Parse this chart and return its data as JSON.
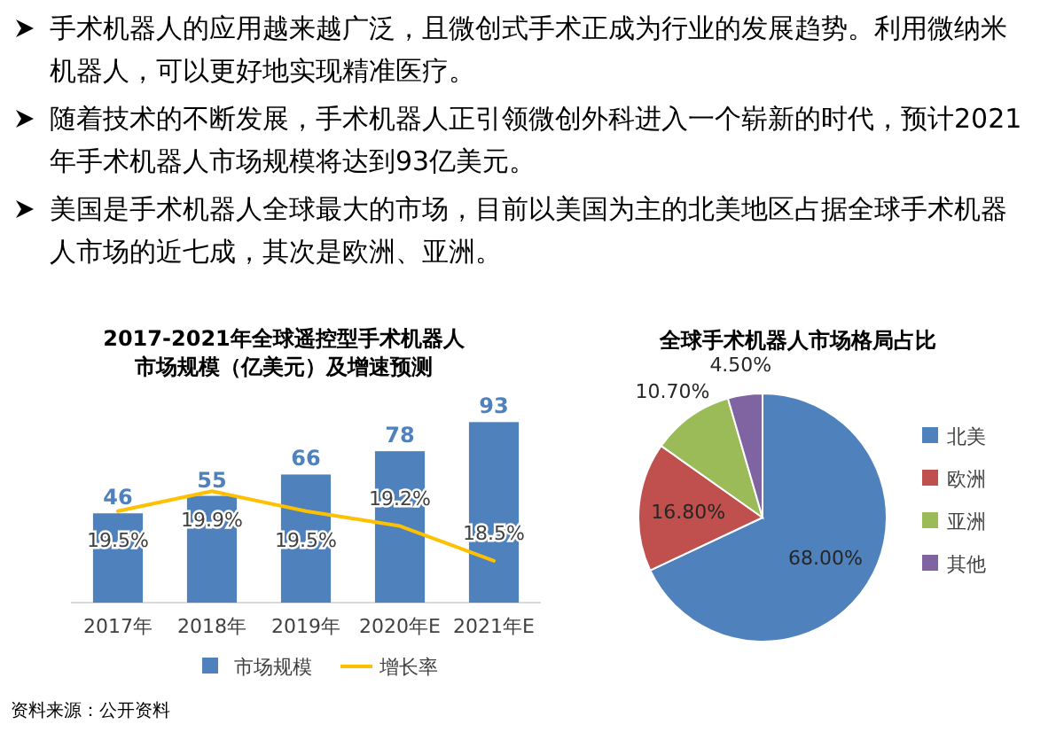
{
  "chart_data": [
    {
      "type": "other",
      "annotations": [
        "手术机器人的应用越来越广泛，且微创式手术正成为行业的发展趋势。利用微纳米机器人，可以更好地实现精准医疗。",
        "随着技术的不断发展，手术机器人正引领微创外科进入一个崭新的时代，预计2021年手术机器人市场规模将达到93亿美元。",
        "美国是手术机器人全球最大的市场，目前以美国为主的北美地区占据全球手术机器人市场的近七成，其次是欧洲、亚洲。"
      ]
    },
    {
      "type": "bar",
      "title": "2017-2021年全球遥控型手术机器人市场规模（亿美元）及增速预测",
      "categories": [
        "2017年",
        "2018年",
        "2019年",
        "2020年E",
        "2021年E"
      ],
      "series": [
        {
          "name": "市场规模",
          "color": "#4f81bd",
          "values": [
            46,
            55,
            66,
            78,
            93
          ]
        },
        {
          "name": "增长率",
          "type": "line",
          "axis": "y2",
          "color": "#ffc000",
          "values": [
            19.5,
            19.9,
            19.5,
            19.2,
            18.5
          ],
          "value_labels": [
            "19.5%",
            "19.9%",
            "19.5%",
            "19.2%",
            "18.5%"
          ]
        }
      ],
      "data_labels": true,
      "tick_labels": "x",
      "legend": "bottom",
      "annotations": [
        "资料来源：公开资料"
      ]
    },
    {
      "type": "pie",
      "title": "全球手术机器人市场格局占比",
      "categories": [
        "北美",
        "欧洲",
        "亚洲",
        "其他"
      ],
      "values": [
        68,
        16.8,
        10.7,
        4.5
      ],
      "colors": [
        "#4f81bd",
        "#c0504d",
        "#9bbb59",
        "#8064a2"
      ],
      "value_labels": [
        "68.00%",
        "16.80%",
        "10.70%",
        "4.50%"
      ],
      "legend": "right"
    }
  ]
}
